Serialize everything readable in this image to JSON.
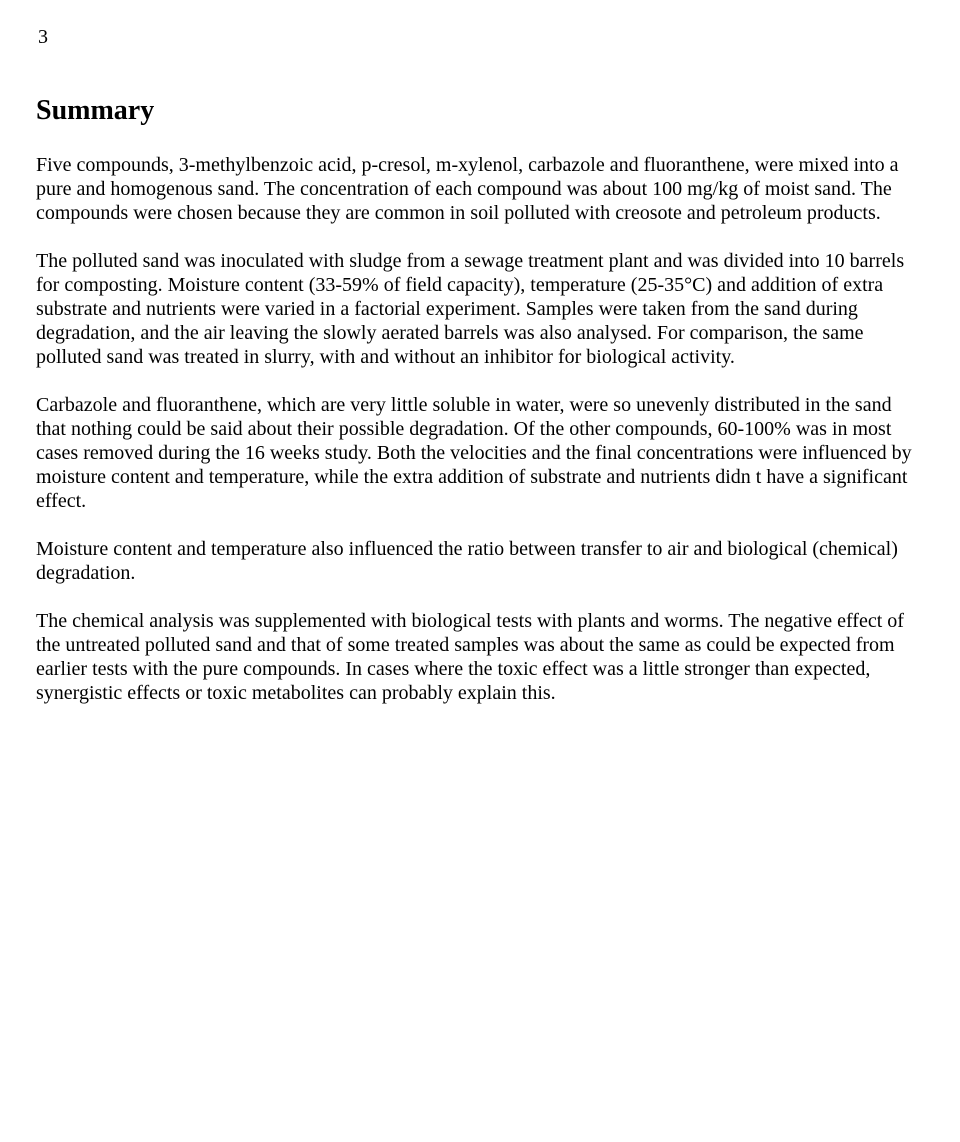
{
  "page": {
    "number": "3"
  },
  "heading": "Summary",
  "paragraphs": {
    "p1": "Five compounds, 3-methylbenzoic acid, p-cresol, m-xylenol, carbazole and fluoranthene, were mixed into a pure and homogenous sand. The concentration of each compound was about 100 mg/kg of moist sand. The compounds were chosen because they are common in soil polluted with creosote and petroleum products.",
    "p2": "The polluted sand was inoculated with sludge from a sewage treatment plant and was divided into 10 barrels for composting. Moisture content (33-59% of field capacity), temperature (25-35°C) and addition of extra substrate and nutrients were varied in a factorial experiment. Samples were taken from the sand during degradation, and the air leaving the slowly aerated barrels was also analysed. For comparison, the same polluted sand was treated in slurry, with and without an inhibitor for biological activity.",
    "p3": "Carbazole and fluoranthene, which are very little soluble in water, were so unevenly distributed in the sand that nothing could be said about their possible degradation. Of the other compounds, 60-100% was in most cases removed during the 16 weeks study. Both the velocities and the final concentrations were influenced by moisture content and temperature, while the extra addition of substrate and nutrients didn t have a significant effect.",
    "p4": "Moisture content and temperature also influenced the ratio between transfer to air and biological (chemical) degradation.",
    "p5": "The chemical analysis was supplemented with biological tests with plants and worms. The negative effect of the untreated polluted sand and that of some treated samples was about the same as could be expected from earlier tests with the pure compounds. In cases where the toxic effect was a little stronger than expected, synergistic effects or toxic metabolites can probably explain this."
  },
  "styling": {
    "background_color": "#ffffff",
    "text_color": "#000000",
    "font_family": "Times New Roman",
    "page_number_fontsize": 20,
    "heading_fontsize": 28,
    "body_fontsize": 20,
    "line_height": 1.2
  }
}
